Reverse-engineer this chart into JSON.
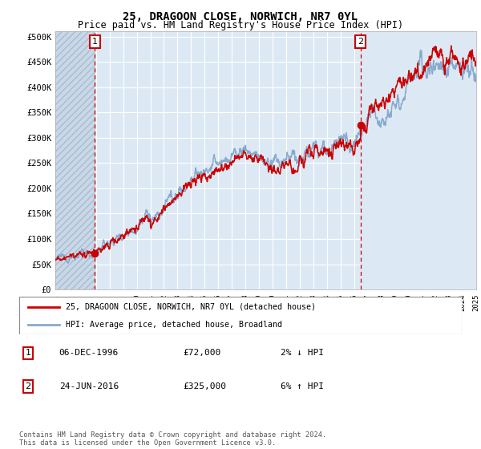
{
  "title": "25, DRAGOON CLOSE, NORWICH, NR7 0YL",
  "subtitle": "Price paid vs. HM Land Registry's House Price Index (HPI)",
  "ylim": [
    0,
    510000
  ],
  "yticks": [
    0,
    50000,
    100000,
    150000,
    200000,
    250000,
    300000,
    350000,
    400000,
    450000,
    500000
  ],
  "ytick_labels": [
    "£0",
    "£50K",
    "£100K",
    "£150K",
    "£200K",
    "£250K",
    "£300K",
    "£350K",
    "£400K",
    "£450K",
    "£500K"
  ],
  "xlim_start": 1994,
  "xlim_end": 2025,
  "sale1_date": 1996.92,
  "sale1_price": 72000,
  "sale2_date": 2016.48,
  "sale2_price": 325000,
  "legend_line1": "25, DRAGOON CLOSE, NORWICH, NR7 0YL (detached house)",
  "legend_line2": "HPI: Average price, detached house, Broadland",
  "table_row1": [
    "1",
    "06-DEC-1996",
    "£72,000",
    "2% ↓ HPI"
  ],
  "table_row2": [
    "2",
    "24-JUN-2016",
    "£325,000",
    "6% ↑ HPI"
  ],
  "footer": "Contains HM Land Registry data © Crown copyright and database right 2024.\nThis data is licensed under the Open Government Licence v3.0.",
  "bg_color": "#dce9f5",
  "hatch_bg_color": "#c8d8e8",
  "grid_color": "#ffffff",
  "line_color_red": "#cc0000",
  "line_color_blue": "#88aacc",
  "vline_color": "#cc0000",
  "label_box_color": "#cc0000"
}
